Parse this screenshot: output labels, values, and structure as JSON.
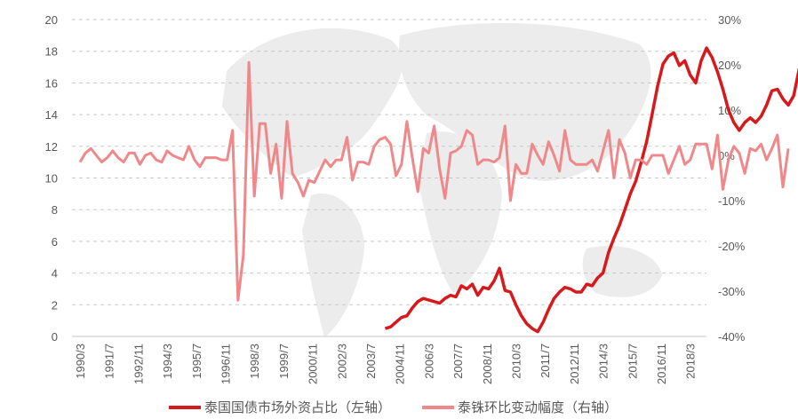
{
  "chart_data": {
    "type": "line",
    "title": "",
    "x_tick_labels": [
      "1990/3",
      "1991/7",
      "1992/11",
      "1994/3",
      "1995/7",
      "1996/11",
      "1998/3",
      "1999/7",
      "2000/11",
      "2002/3",
      "2003/7",
      "2004/11",
      "2006/3",
      "2007/7",
      "2008/11",
      "2010/3",
      "2011/7",
      "2012/11",
      "2014/3",
      "2015/7",
      "2016/11",
      "2018/3"
    ],
    "left_axis": {
      "label": "",
      "min": 0,
      "max": 20,
      "ticks": [
        "0",
        "2",
        "4",
        "6",
        "8",
        "10",
        "12",
        "14",
        "16",
        "18",
        "20"
      ]
    },
    "right_axis": {
      "label": "",
      "min": -40,
      "max": 30,
      "ticks": [
        "-40%",
        "-30%",
        "-20%",
        "-10%",
        "0%",
        "10%",
        "20%",
        "30%"
      ]
    },
    "grid": "dashed horizontal",
    "legend_position": "bottom",
    "series": [
      {
        "name": "泰国国债市场外资占比（左轴）",
        "axis": "left",
        "color": "#d7191c",
        "start_index": 56,
        "values": [
          0.5,
          0.6,
          0.9,
          1.2,
          1.3,
          1.8,
          2.2,
          2.4,
          2.3,
          2.2,
          2.1,
          2.4,
          2.6,
          2.5,
          3.2,
          3.0,
          3.3,
          2.6,
          3.1,
          3.0,
          3.5,
          4.3,
          2.9,
          2.8,
          2.0,
          1.3,
          0.8,
          0.5,
          0.3,
          0.9,
          1.7,
          2.4,
          2.8,
          3.1,
          3.0,
          2.8,
          2.8,
          3.3,
          3.2,
          3.7,
          4.0,
          5.3,
          6.2,
          7.0,
          8.0,
          9.0,
          9.8,
          11.0,
          12.3,
          14.0,
          15.8,
          17.2,
          17.7,
          17.9,
          17.1,
          17.4,
          16.5,
          16.0,
          17.4,
          18.2,
          17.6,
          16.7,
          15.6,
          14.3,
          13.5,
          13.0,
          13.5,
          13.8,
          13.5,
          13.9,
          14.6,
          15.5,
          15.6,
          15.0,
          14.6,
          15.2,
          16.9
        ]
      },
      {
        "name": "泰铢环比变动幅度（右轴）",
        "axis": "right",
        "color": "#f0888a",
        "start_index": 0,
        "values": [
          -1.5,
          0.5,
          1.5,
          0,
          -1.5,
          -0.5,
          1,
          -0.5,
          -1.5,
          0.5,
          0.5,
          -2,
          0,
          0.5,
          -1,
          -1.5,
          1,
          0,
          -0.5,
          -1,
          2,
          -1,
          -2.5,
          -0.5,
          -0.5,
          -0.5,
          -1,
          -1,
          5.5,
          -32,
          -22,
          20.5,
          -9,
          7,
          7,
          -4,
          2.5,
          -9.5,
          7.5,
          -4,
          -6,
          -9,
          -5.5,
          -6,
          -3.5,
          -1,
          -2.5,
          -1,
          -1,
          4,
          -5.5,
          -1.5,
          -1.5,
          -2,
          2,
          3.5,
          4,
          2.5,
          -4.5,
          -2,
          7.5,
          -0.5,
          -8,
          1.5,
          0.5,
          6.5,
          -3,
          -9.5,
          0.5,
          1,
          2,
          5.5,
          4.5,
          -2,
          -1,
          -1,
          -1.5,
          -0.5,
          6.5,
          -10,
          -2,
          -4,
          -4,
          2.5,
          0,
          -2,
          3,
          0,
          -3.5,
          5.5,
          -1,
          -2,
          -2,
          -2,
          -1,
          -3.5,
          1,
          5.5,
          -5,
          3.5,
          0.5,
          -5,
          -1,
          -1,
          -2,
          0,
          0,
          0,
          -4,
          -1,
          2,
          -2,
          -1,
          2.5,
          2.5,
          2.5,
          -3,
          4.5,
          -7.5,
          -1,
          2,
          0.5,
          -4,
          1.5,
          1,
          2.5,
          -1,
          1.5,
          4.5,
          -7,
          1.5
        ]
      }
    ]
  },
  "legend": {
    "items": [
      {
        "label": "泰国国债市场外资占比（左轴）",
        "color": "#d7191c"
      },
      {
        "label": "泰铢环比变动幅度（右轴）",
        "color": "#f0888a"
      }
    ]
  }
}
